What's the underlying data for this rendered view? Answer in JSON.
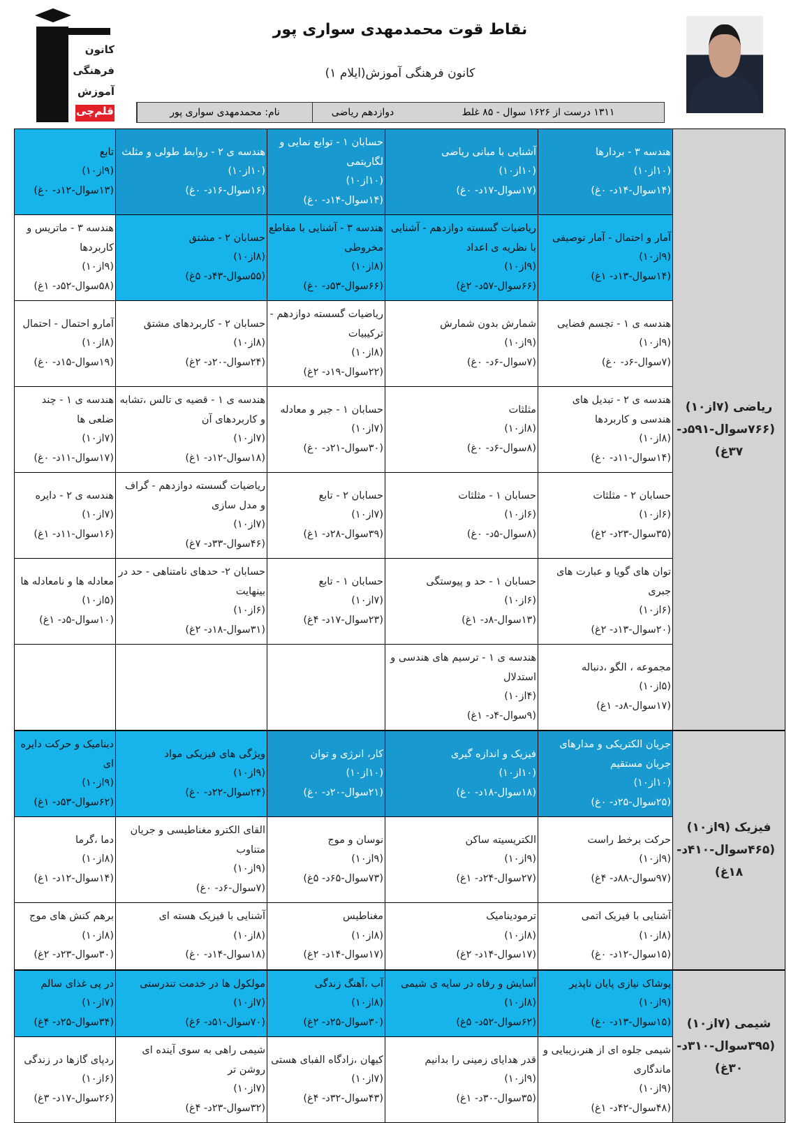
{
  "header": {
    "title": "نقاط قوت محمدمهدی سواری پور",
    "subtitle": "کانون فرهنگی آموزش(ایلام ۱)",
    "info": {
      "name": "نام: محمدمهدی سواری پور",
      "grade": "دوازدهم ریاضی",
      "summary": "۱۳۱۱ درست از ۱۶۲۶ سوال - ۸۵ غلط"
    },
    "logo_text": [
      "کانون",
      "فرهنگی",
      "آموزش",
      "قلم‌چی"
    ]
  },
  "colors": {
    "dark_cell": "#1899cf",
    "light_cell": "#17b4ec",
    "subject_cell": "#d3d3d3",
    "logo_red": "#e3202a"
  },
  "subjects": [
    {
      "name": "ریاضی (۷از۱۰)",
      "stats": "(۷۶۶سوال-۵۹۱د- ۳۷غ)",
      "rows": [
        [
          {
            "title": "هندسه ۳ - بردارها",
            "score": "(۱۰از۱۰)",
            "stats": "(۱۴سوال-۱۴د- ۰غ)",
            "level": "dark"
          },
          {
            "title": "آشنایی با مبانی ریاضی",
            "score": "(۱۰از۱۰)",
            "stats": "(۱۷سوال-۱۷د- ۰غ)",
            "level": "dark"
          },
          {
            "title": "حسابان ۱ - توابع نمایی و لگاریتمی",
            "score": "(۱۰از۱۰)",
            "stats": "(۱۴سوال-۱۴د- ۰غ)",
            "level": "dark"
          },
          {
            "title": "هندسه ی ۲ - روابط طولی و مثلث",
            "score": "(۱۰از۱۰)",
            "stats": "(۱۶سوال-۱۶د- ۰غ)",
            "level": "dark"
          },
          {
            "title": "تابع",
            "score": "(۹از۱۰)",
            "stats": "(۱۳سوال-۱۲د- ۰غ)",
            "level": "light"
          }
        ],
        [
          {
            "title": "آمار و احتمال - آمار توصیفی",
            "score": "(۹از۱۰)",
            "stats": "(۱۴سوال-۱۳د- ۱غ)",
            "level": "light"
          },
          {
            "title": "ریاضیات گسسته دوازدهم - آشنایی با نظریه ی اعداد",
            "score": "(۹از۱۰)",
            "stats": "(۶۶سوال-۵۷د- ۲غ)",
            "level": "light"
          },
          {
            "title": "هندسه ۳ - آشنایی با مقاطع مخروطی",
            "score": "(۸از۱۰)",
            "stats": "(۶۶سوال-۵۳د- ۰غ)",
            "level": "light"
          },
          {
            "title": "حسابان ۲ - مشتق",
            "score": "(۸از۱۰)",
            "stats": "(۵۵سوال-۴۳د- ۵غ)",
            "level": "light"
          },
          {
            "title": "هندسه ۳ - ماتریس و کاربردها",
            "score": "(۹از۱۰)",
            "stats": "(۵۸سوال-۵۲د- ۱غ)",
            "level": "white"
          }
        ],
        [
          {
            "title": "هندسه ی ۱ - تجسم فضایی",
            "score": "(۹از۱۰)",
            "stats": "(۷سوال-۶د- ۰غ)",
            "level": "white"
          },
          {
            "title": "شمارش بدون شمارش",
            "score": "(۹از۱۰)",
            "stats": "(۷سوال-۶د- ۰غ)",
            "level": "white"
          },
          {
            "title": "ریاضیات گسسته دوازدهم - ترکیبیات",
            "score": "(۸از۱۰)",
            "stats": "(۲۲سوال-۱۹د- ۲غ)",
            "level": "white"
          },
          {
            "title": "حسابان ۲ - کاربردهای مشتق",
            "score": "(۸از۱۰)",
            "stats": "(۲۴سوال-۲۰د- ۲غ)",
            "level": "white"
          },
          {
            "title": "آمارو احتمال - احتمال",
            "score": "(۸از۱۰)",
            "stats": "(۱۹سوال-۱۵د- ۰غ)",
            "level": "white"
          }
        ],
        [
          {
            "title": "هندسه ی ۲ - تبدیل های هندسی و کاربردها",
            "score": "(۸از۱۰)",
            "stats": "(۱۴سوال-۱۱د- ۰غ)",
            "level": "white"
          },
          {
            "title": "مثلثات",
            "score": "(۸از۱۰)",
            "stats": "(۸سوال-۶د- ۰غ)",
            "level": "white"
          },
          {
            "title": "حسابان ۱ - جبر و معادله",
            "score": "(۷از۱۰)",
            "stats": "(۳۰سوال-۲۱د- ۰غ)",
            "level": "white"
          },
          {
            "title": "هندسه ی ۱ - قضیه ی تالس ،تشابه و کاربردهای آن",
            "score": "(۷از۱۰)",
            "stats": "(۱۸سوال-۱۲د- ۱غ)",
            "level": "white"
          },
          {
            "title": "هندسه ی ۱ - چند ضلعی ها",
            "score": "(۷از۱۰)",
            "stats": "(۱۷سوال-۱۱د- ۰غ)",
            "level": "white"
          }
        ],
        [
          {
            "title": "حسابان ۲ - مثلثات",
            "score": "(۶از۱۰)",
            "stats": "(۳۵سوال-۲۳د- ۲غ)",
            "level": "white"
          },
          {
            "title": "حسابان ۱ - مثلثات",
            "score": "(۶از۱۰)",
            "stats": "(۸سوال-۵د- ۰غ)",
            "level": "white"
          },
          {
            "title": "حسابان ۲ - تابع",
            "score": "(۷از۱۰)",
            "stats": "(۳۹سوال-۲۸د- ۱غ)",
            "level": "white"
          },
          {
            "title": "ریاضیات گسسته دوازدهم - گراف و مدل سازی",
            "score": "(۷از۱۰)",
            "stats": "(۴۶سوال-۳۳د- ۷غ)",
            "level": "white"
          },
          {
            "title": "هندسه ی ۲ - دایره",
            "score": "(۷از۱۰)",
            "stats": "(۱۶سوال-۱۱د- ۱غ)",
            "level": "white"
          }
        ],
        [
          {
            "title": "توان های گویا و عبارت های جبری",
            "score": "(۶از۱۰)",
            "stats": "(۲۰سوال-۱۳د- ۲غ)",
            "level": "white"
          },
          {
            "title": "حسابان ۱ - حد و پیوستگی",
            "score": "(۶از۱۰)",
            "stats": "(۱۳سوال-۸د- ۱غ)",
            "level": "white"
          },
          {
            "title": "حسابان ۱ - تابع",
            "score": "(۷از۱۰)",
            "stats": "(۲۳سوال-۱۷د- ۴غ)",
            "level": "white"
          },
          {
            "title": "حسابان ۲- حدهای نامتناهی - حد در بینهایت",
            "score": "(۶از۱۰)",
            "stats": "(۳۱سوال-۱۸د- ۲غ)",
            "level": "white"
          },
          {
            "title": "معادله ها و نامعادله ها",
            "score": "(۵از۱۰)",
            "stats": "(۱۰سوال-۵د- ۱غ)",
            "level": "white"
          }
        ],
        [
          {
            "title": "مجموعه ، الگو ،دنباله",
            "score": "(۵از۱۰)",
            "stats": "(۱۷سوال-۸د- ۱غ)",
            "level": "white"
          },
          {
            "title": "هندسه ی ۱ - ترسیم های هندسی و استدلال",
            "score": "(۴از۱۰)",
            "stats": "(۹سوال-۴د- ۱غ)",
            "level": "white"
          },
          null,
          null,
          null
        ]
      ]
    },
    {
      "name": "فیزیک (۹از۱۰)",
      "stats": "(۴۶۵سوال-۴۱۰د- ۱۸غ)",
      "rows": [
        [
          {
            "title": "جریان الکتریکی و مدارهای جریان مستقیم",
            "score": "(۱۰از۱۰)",
            "stats": "(۲۵سوال-۲۵د- ۰غ)",
            "level": "dark"
          },
          {
            "title": "فیزیک و اندازه گیری",
            "score": "(۱۰از۱۰)",
            "stats": "(۱۸سوال-۱۸د- ۰غ)",
            "level": "dark"
          },
          {
            "title": "کار، انرژی و توان",
            "score": "(۱۰از۱۰)",
            "stats": "(۲۱سوال-۲۰د- ۰غ)",
            "level": "dark"
          },
          {
            "title": "ویژگی های فیزیکی مواد",
            "score": "(۹از۱۰)",
            "stats": "(۲۴سوال-۲۲د- ۰غ)",
            "level": "light"
          },
          {
            "title": "دینامیک و حرکت دایره ای",
            "score": "(۹از۱۰)",
            "stats": "(۶۲سوال-۵۳د- ۱غ)",
            "level": "light"
          }
        ],
        [
          {
            "title": "حرکت برخط راست",
            "score": "(۹از۱۰)",
            "stats": "(۹۷سوال-۸۸د- ۴غ)",
            "level": "white"
          },
          {
            "title": "الکتریسیته ساکن",
            "score": "(۹از۱۰)",
            "stats": "(۲۷سوال-۲۴د- ۱غ)",
            "level": "white"
          },
          {
            "title": "نوسان و موج",
            "score": "(۹از۱۰)",
            "stats": "(۷۳سوال-۶۵د- ۵غ)",
            "level": "white"
          },
          {
            "title": "القای الکترو مغناطیسی و جریان متناوب",
            "score": "(۹از۱۰)",
            "stats": "(۷سوال-۶د- ۰غ)",
            "level": "white"
          },
          {
            "title": "دما ،گرما",
            "score": "(۸از۱۰)",
            "stats": "(۱۴سوال-۱۲د- ۱غ)",
            "level": "white"
          }
        ],
        [
          {
            "title": "آشنایی با فیزیک اتمی",
            "score": "(۸از۱۰)",
            "stats": "(۱۵سوال-۱۲د- ۰غ)",
            "level": "white"
          },
          {
            "title": "ترمودینامیک",
            "score": "(۸از۱۰)",
            "stats": "(۱۷سوال-۱۴د- ۲غ)",
            "level": "white"
          },
          {
            "title": "مغناطیس",
            "score": "(۸از۱۰)",
            "stats": "(۱۷سوال-۱۴د- ۲غ)",
            "level": "white"
          },
          {
            "title": "آشنایی با فیزیک هسته ای",
            "score": "(۸از۱۰)",
            "stats": "(۱۸سوال-۱۴د- ۰غ)",
            "level": "white"
          },
          {
            "title": "برهم کنش های موج",
            "score": "(۸از۱۰)",
            "stats": "(۳۰سوال-۲۳د- ۲غ)",
            "level": "white"
          }
        ]
      ]
    },
    {
      "name": "شیمی (۷از۱۰)",
      "stats": "(۳۹۵سوال-۳۱۰د- ۳۰غ)",
      "rows": [
        [
          {
            "title": "پوشاک نیازی پایان ناپذیر",
            "score": "(۹از۱۰)",
            "stats": "(۱۵سوال-۱۳د- ۰غ)",
            "level": "light"
          },
          {
            "title": "آسایش و رفاه در سایه ی شیمی",
            "score": "(۸از۱۰)",
            "stats": "(۶۲سوال-۵۲د- ۵غ)",
            "level": "light"
          },
          {
            "title": "آب ،آهنگ زندگی",
            "score": "(۸از۱۰)",
            "stats": "(۳۰سوال-۲۵د- ۲غ)",
            "level": "light"
          },
          {
            "title": "مولکول ها در خدمت تندرستی",
            "score": "(۷از۱۰)",
            "stats": "(۷۰سوال-۵۱د- ۶غ)",
            "level": "light"
          },
          {
            "title": "در پی غذای سالم",
            "score": "(۷از۱۰)",
            "stats": "(۳۴سوال-۲۵د- ۴غ)",
            "level": "light"
          }
        ],
        [
          {
            "title": "شیمی جلوه ای از هنر،زیبایی و ماندگاری",
            "score": "(۹از۱۰)",
            "stats": "(۴۸سوال-۴۲د- ۱غ)",
            "level": "white"
          },
          {
            "title": "قدر هدایای زمینی را بدانیم",
            "score": "(۹از۱۰)",
            "stats": "(۳۵سوال-۳۰د- ۱غ)",
            "level": "white"
          },
          {
            "title": "کیهان ،زادگاه الفبای هستی",
            "score": "(۷از۱۰)",
            "stats": "(۴۳سوال-۳۲د- ۴غ)",
            "level": "white"
          },
          {
            "title": "شیمی راهی به سوی آینده ای روشن تر",
            "score": "(۷از۱۰)",
            "stats": "(۳۲سوال-۲۳د- ۴غ)",
            "level": "white"
          },
          {
            "title": "ردپای گازها در زندگی",
            "score": "(۶از۱۰)",
            "stats": "(۲۶سوال-۱۷د- ۳غ)",
            "level": "white"
          }
        ]
      ]
    }
  ]
}
